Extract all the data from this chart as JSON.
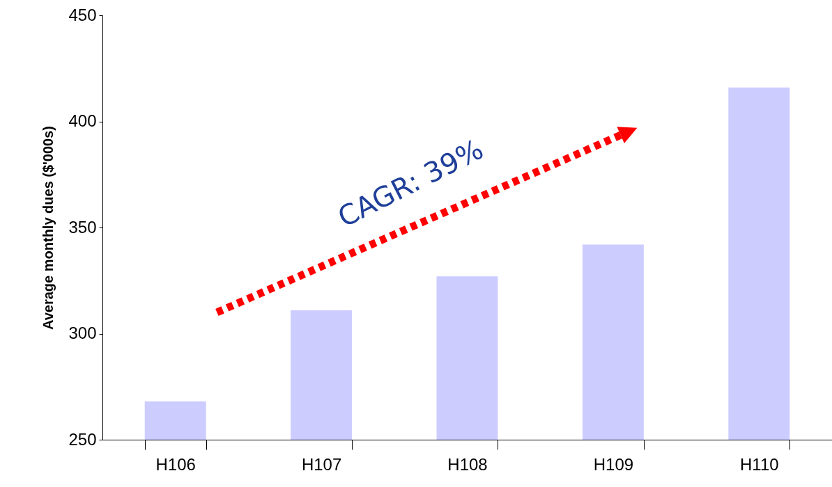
{
  "chart_data": {
    "type": "bar",
    "ylabel": "Average monthly dues ($'000s)",
    "categories": [
      "H106",
      "H107",
      "H108",
      "H109",
      "H110"
    ],
    "values": [
      268,
      311,
      327,
      342,
      416
    ],
    "color": "#ccccff",
    "ylim": [
      250,
      450
    ],
    "yticks": [
      250,
      300,
      350,
      400,
      450
    ],
    "grid": false,
    "annotations": [
      "CAGR:  39%"
    ]
  }
}
